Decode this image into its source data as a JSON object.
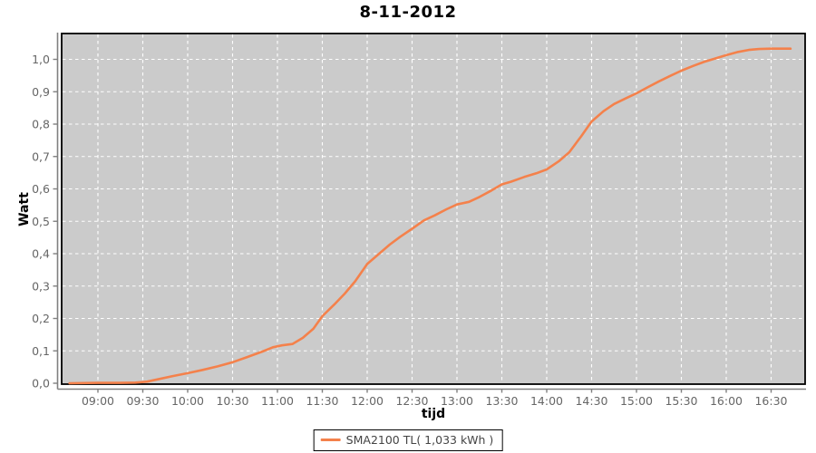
{
  "title": "8-11-2012",
  "colors": {
    "page_bg": "#ffffff",
    "plot_bg": "#cbcbcb",
    "plot_border": "#000000",
    "gridline": "#ffffff",
    "axis_line": "#808080",
    "tick_label": "#666666",
    "series_orange": "#f4814b",
    "legend_text": "#444444"
  },
  "legend": {
    "label": "SMA2100 TL( 1,033 kWh )",
    "swatch_color": "#f4814b",
    "position": "bottom-center"
  },
  "chart_data": {
    "type": "line",
    "title": "8-11-2012",
    "xlabel": "tijd",
    "ylabel": "Watt",
    "ylim": [
      0.0,
      1.08
    ],
    "xlim": [
      "08:36",
      "16:53"
    ],
    "grid": "white dashed on gray plot background",
    "legend_position": "bottom-center",
    "x_ticks": [
      "09:00",
      "09:30",
      "10:00",
      "10:30",
      "11:00",
      "11:30",
      "12:00",
      "12:30",
      "13:00",
      "13:30",
      "14:00",
      "14:30",
      "15:00",
      "15:30",
      "16:00",
      "16:30"
    ],
    "y_ticks": [
      {
        "label": "0,0",
        "value": 0.0
      },
      {
        "label": "0,1",
        "value": 0.1
      },
      {
        "label": "0,2",
        "value": 0.2
      },
      {
        "label": "0,3",
        "value": 0.3
      },
      {
        "label": "0,4",
        "value": 0.4
      },
      {
        "label": "0,5",
        "value": 0.5
      },
      {
        "label": "0,6",
        "value": 0.6
      },
      {
        "label": "0,7",
        "value": 0.7
      },
      {
        "label": "0,8",
        "value": 0.8
      },
      {
        "label": "0,9",
        "value": 0.9
      },
      {
        "label": "1,0",
        "value": 1.0
      }
    ],
    "series": [
      {
        "name": "SMA2100 TL( 1,033 kWh )",
        "color": "#f4814b",
        "final_total_kwh": "1,033",
        "x": [
          "08:41",
          "09:00",
          "09:15",
          "09:25",
          "09:33",
          "09:40",
          "09:50",
          "10:00",
          "10:10",
          "10:20",
          "10:30",
          "10:40",
          "10:50",
          "10:57",
          "11:03",
          "11:10",
          "11:17",
          "11:24",
          "11:30",
          "11:38",
          "11:45",
          "11:52",
          "12:00",
          "12:08",
          "12:15",
          "12:22",
          "12:30",
          "12:38",
          "12:45",
          "12:53",
          "13:00",
          "13:08",
          "13:15",
          "13:23",
          "13:30",
          "13:36",
          "13:45",
          "13:53",
          "14:00",
          "14:08",
          "14:15",
          "14:23",
          "14:30",
          "14:38",
          "14:45",
          "14:53",
          "15:00",
          "15:08",
          "15:15",
          "15:23",
          "15:30",
          "15:38",
          "15:45",
          "15:53",
          "16:00",
          "16:08",
          "16:15",
          "16:22",
          "16:30",
          "16:43"
        ],
        "values": [
          0,
          0.001,
          0.001,
          0.002,
          0.005,
          0.012,
          0.022,
          0.031,
          0.041,
          0.052,
          0.065,
          0.081,
          0.098,
          0.111,
          0.117,
          0.121,
          0.14,
          0.168,
          0.207,
          0.243,
          0.277,
          0.315,
          0.368,
          0.4,
          0.428,
          0.452,
          0.477,
          0.503,
          0.518,
          0.537,
          0.552,
          0.56,
          0.575,
          0.595,
          0.614,
          0.622,
          0.637,
          0.648,
          0.66,
          0.685,
          0.713,
          0.762,
          0.808,
          0.84,
          0.862,
          0.88,
          0.895,
          0.915,
          0.932,
          0.95,
          0.965,
          0.98,
          0.992,
          1.003,
          1.013,
          1.023,
          1.029,
          1.032,
          1.033,
          1.033
        ]
      }
    ]
  }
}
